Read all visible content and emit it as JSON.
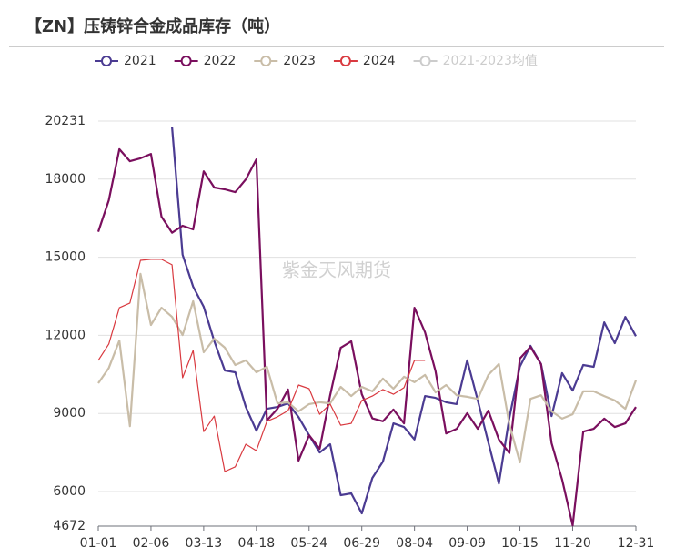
{
  "chart_data": {
    "type": "line",
    "title": "【ZN】压铸锌合金成品库存（吨）",
    "watermark": "紫金天风期货",
    "categories": [
      "01-01",
      null,
      null,
      null,
      null,
      "02-06",
      null,
      null,
      null,
      null,
      "03-13",
      null,
      null,
      null,
      null,
      "04-18",
      null,
      null,
      null,
      null,
      "05-24",
      null,
      null,
      null,
      null,
      "06-29",
      null,
      null,
      null,
      null,
      "08-04",
      null,
      null,
      null,
      null,
      "09-09",
      null,
      null,
      null,
      null,
      "10-15",
      null,
      null,
      null,
      null,
      "11-20",
      null,
      null,
      null,
      null,
      null,
      "12-31"
    ],
    "ylim": [
      4672,
      20231
    ],
    "yticks": [
      4672,
      6000,
      9000,
      12000,
      15000,
      18000,
      20231
    ],
    "grid": true,
    "legend": "top",
    "series": [
      {
        "name": "2021",
        "color": "#4b3b92",
        "values": [
          null,
          null,
          null,
          null,
          null,
          null,
          null,
          20000,
          15100,
          13870,
          13100,
          11780,
          10650,
          10580,
          9250,
          8340,
          9180,
          9250,
          9390,
          8860,
          8160,
          7500,
          7820,
          5860,
          5930,
          5160,
          6520,
          7150,
          8620,
          8480,
          8000,
          9670,
          9600,
          9430,
          9360,
          11040,
          9500,
          7890,
          6310,
          8830,
          10800,
          11600,
          10900,
          8900,
          10550,
          9880,
          10860,
          10790,
          12500,
          11700,
          12710,
          11970
        ]
      },
      {
        "name": "2022",
        "color": "#7a0f5e",
        "values": [
          15980,
          17190,
          19150,
          18690,
          18800,
          18970,
          16560,
          15940,
          16210,
          16070,
          18300,
          17680,
          17610,
          17500,
          17990,
          18760,
          8730,
          9180,
          9920,
          7190,
          8160,
          7640,
          9700,
          11520,
          11770,
          9740,
          8810,
          8700,
          9150,
          8620,
          13060,
          12120,
          10620,
          8230,
          8410,
          9010,
          8410,
          9110,
          8000,
          7480,
          11110,
          11560,
          10900,
          7860,
          6460,
          4700,
          8300,
          8410,
          8800,
          8480,
          8620,
          9250
        ]
      },
      {
        "name": "2023",
        "color": "#c9bda8",
        "values": [
          10160,
          10750,
          11800,
          8510,
          14360,
          12400,
          13060,
          12710,
          12010,
          13310,
          11350,
          11870,
          11530,
          10860,
          11040,
          10580,
          10790,
          9390,
          9430,
          9080,
          9360,
          9430,
          9390,
          10020,
          9670,
          10020,
          9850,
          10340,
          9950,
          10410,
          10200,
          10480,
          9810,
          10090,
          9700,
          9640,
          9560,
          10480,
          10900,
          8580,
          7120,
          9560,
          9700,
          9080,
          8800,
          8970,
          9850,
          9850,
          9670,
          9500,
          9180,
          10270
        ]
      },
      {
        "name": "2024",
        "color": "#d93a40",
        "values": [
          11040,
          11670,
          13060,
          13240,
          14880,
          14920,
          14920,
          14710,
          10370,
          11420,
          8300,
          8900,
          6770,
          6950,
          7820,
          7570,
          8700,
          8870,
          9110,
          10090,
          9950,
          8970,
          9360,
          8550,
          8620,
          9500,
          9670,
          9920,
          9740,
          9990,
          11040,
          11040,
          null,
          null,
          null,
          null,
          null,
          null,
          null,
          null,
          null,
          null,
          null,
          null,
          null,
          null,
          null,
          null,
          null,
          null,
          null,
          null
        ]
      },
      {
        "name": "2021-2023均值",
        "color": "#cccccc",
        "hidden": true,
        "values": [
          null,
          null,
          null,
          null,
          null,
          null,
          null,
          null,
          null,
          null,
          null,
          null,
          null,
          null,
          null,
          null,
          null,
          null,
          null,
          null,
          null,
          null,
          null,
          null,
          null,
          null,
          null,
          null,
          null,
          null,
          null,
          null,
          null,
          null,
          null,
          null,
          null,
          null,
          null,
          null,
          null,
          null,
          null,
          null,
          null,
          null,
          null,
          null,
          null,
          null,
          null,
          null
        ]
      }
    ]
  }
}
